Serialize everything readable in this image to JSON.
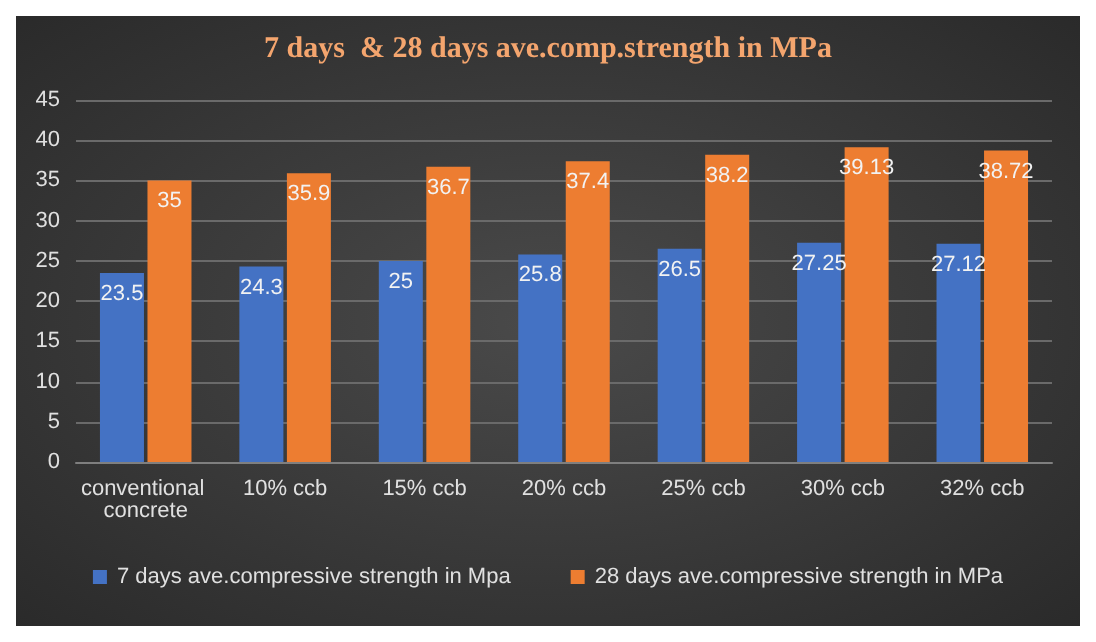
{
  "chart_data": {
    "type": "bar",
    "title": "7 days  & 28 days ave.comp.strength in MPa",
    "categories": [
      "conventional concrete",
      "10% ccb",
      "15% ccb",
      "20% ccb",
      "25% ccb",
      "30% ccb",
      "32% ccb"
    ],
    "series": [
      {
        "name": "7 days ave.compressive strength in Mpa",
        "color": "#4472c4",
        "values": [
          23.5,
          24.3,
          25,
          25.8,
          26.5,
          27.25,
          27.12
        ]
      },
      {
        "name": "28 days ave.compressive strength in MPa",
        "color": "#ed7d31",
        "values": [
          35,
          35.9,
          36.7,
          37.4,
          38.2,
          39.13,
          38.72
        ]
      }
    ],
    "ylim": [
      0,
      45
    ],
    "yticks": [
      0,
      5,
      10,
      15,
      20,
      25,
      30,
      35,
      40,
      45
    ],
    "grid": "y",
    "legend": "bottom",
    "data_labels": true
  }
}
